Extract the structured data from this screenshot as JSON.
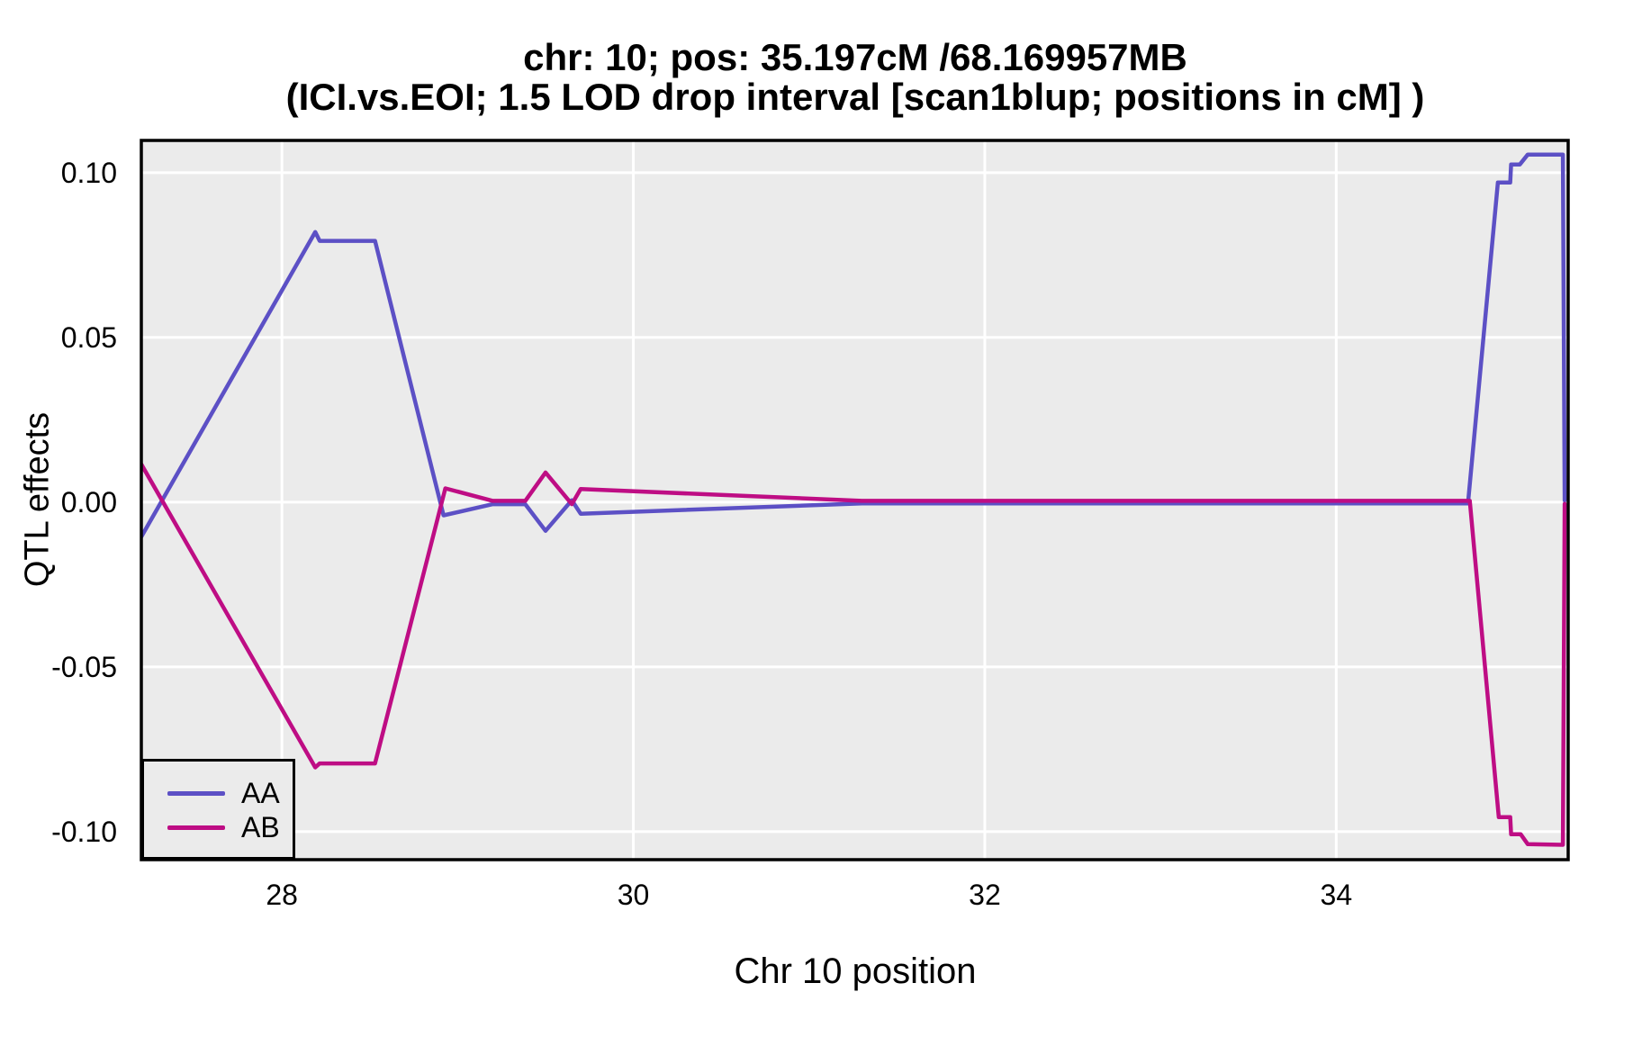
{
  "figure": {
    "title_line1": "chr: 10; pos: 35.197cM /68.169957MB",
    "title_line2": "(ICI.vs.EOI; 1.5 LOD drop interval [scan1blup; positions in cM] )"
  },
  "chart_data": {
    "type": "line",
    "title": "chr: 10; pos: 35.197cM /68.169957MB",
    "subtitle": "(ICI.vs.EOI; 1.5 LOD drop interval [scan1blup; positions in cM] )",
    "xlabel": "Chr 10 position",
    "ylabel": "QTL effects",
    "xlim": [
      27.2,
      35.32
    ],
    "ylim": [
      -0.1085,
      0.1098
    ],
    "grid": true,
    "panel_background": "#EBEBEB",
    "gridline_color": "#FFFFFF",
    "border_color": "#000000",
    "x_ticks": [
      {
        "v": 28,
        "label": "28"
      },
      {
        "v": 30,
        "label": "30"
      },
      {
        "v": 32,
        "label": "32"
      },
      {
        "v": 34,
        "label": "34"
      }
    ],
    "y_ticks": [
      {
        "v": 0.1,
        "label": "0.10"
      },
      {
        "v": 0.05,
        "label": "0.05"
      },
      {
        "v": 0.0,
        "label": "0.00"
      },
      {
        "v": -0.05,
        "label": "-0.05"
      },
      {
        "v": -0.1,
        "label": "-0.10"
      }
    ],
    "legend": {
      "position": "bottom-left",
      "entries": [
        {
          "name": "AA",
          "color": "#5C50C5"
        },
        {
          "name": "AB",
          "color": "#BE0D84"
        }
      ]
    },
    "series": [
      {
        "name": "AA",
        "color": "#5C50C5",
        "points": [
          [
            27.2,
            -0.0105
          ],
          [
            28.19,
            0.082
          ],
          [
            28.215,
            0.0793
          ],
          [
            28.53,
            0.0793
          ],
          [
            28.92,
            -0.004
          ],
          [
            29.2,
            -0.0006
          ],
          [
            29.385,
            -0.0006
          ],
          [
            29.5,
            -0.0087
          ],
          [
            29.65,
            0.0006
          ],
          [
            29.7,
            -0.0035
          ],
          [
            31.3,
            -0.0004
          ],
          [
            34.75,
            -0.0004
          ],
          [
            34.92,
            0.097
          ],
          [
            34.99,
            0.097
          ],
          [
            34.995,
            0.1025
          ],
          [
            35.045,
            0.1025
          ],
          [
            35.09,
            0.1055
          ],
          [
            35.29,
            0.1055
          ],
          [
            35.3,
            0.0005
          ]
        ]
      },
      {
        "name": "AB",
        "color": "#BE0D84",
        "points": [
          [
            27.2,
            0.0115
          ],
          [
            28.19,
            -0.0805
          ],
          [
            28.215,
            -0.0793
          ],
          [
            28.53,
            -0.0793
          ],
          [
            28.93,
            0.0042
          ],
          [
            29.2,
            0.0004
          ],
          [
            29.385,
            0.0004
          ],
          [
            29.5,
            0.009
          ],
          [
            29.65,
            -0.0006
          ],
          [
            29.7,
            0.004
          ],
          [
            31.3,
            0.0004
          ],
          [
            34.76,
            0.0004
          ],
          [
            34.925,
            -0.0956
          ],
          [
            34.99,
            -0.0956
          ],
          [
            34.995,
            -0.1008
          ],
          [
            35.05,
            -0.1008
          ],
          [
            35.09,
            -0.1038
          ],
          [
            35.29,
            -0.104
          ],
          [
            35.3,
            -0.0005
          ]
        ]
      }
    ]
  }
}
